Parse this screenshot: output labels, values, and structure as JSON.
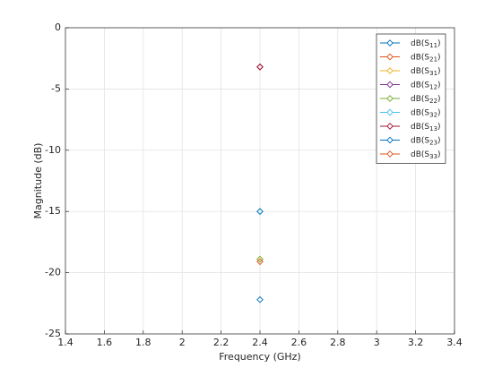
{
  "chart_data": {
    "type": "scatter",
    "x_label": "Frequency (GHz)",
    "y_label": "Magnitude (dB)",
    "x": [
      2.4
    ],
    "xlim": [
      1.4,
      3.4
    ],
    "xticks": [
      1.4,
      1.6,
      1.8,
      2,
      2.2,
      2.4,
      2.6,
      2.8,
      3,
      3.2,
      3.4
    ],
    "ylim": [
      -25,
      0
    ],
    "yticks": [
      -25,
      -20,
      -15,
      -10,
      -5,
      0
    ],
    "grid": true,
    "legend": "northeast",
    "series": [
      {
        "name": "dB(S11)",
        "color": "#0072bd",
        "values": [
          -22.2
        ]
      },
      {
        "name": "dB(S21)",
        "color": "#d95319",
        "values": [
          -3.2
        ]
      },
      {
        "name": "dB(S31)",
        "color": "#edb120",
        "values": [
          -18.9
        ]
      },
      {
        "name": "dB(S12)",
        "color": "#7e2f8e",
        "values": [
          -3.2
        ]
      },
      {
        "name": "dB(S22)",
        "color": "#77ac30",
        "values": [
          -18.9
        ]
      },
      {
        "name": "dB(S32)",
        "color": "#4dbeee",
        "values": [
          -15
        ]
      },
      {
        "name": "dB(S13)",
        "color": "#a2142f",
        "values": [
          -3.2
        ]
      },
      {
        "name": "dB(S23)",
        "color": "#0072bd",
        "values": [
          -15
        ]
      },
      {
        "name": "dB(S33)",
        "color": "#d95319",
        "values": [
          -19.1
        ]
      }
    ]
  }
}
